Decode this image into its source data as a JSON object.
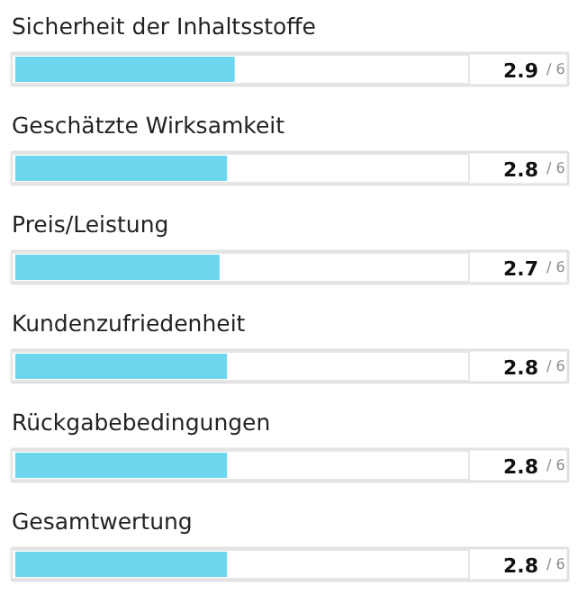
{
  "chart_data": {
    "type": "bar",
    "orientation": "horizontal",
    "categories": [
      "Sicherheit der Inhaltsstoffe",
      "Geschätzte Wirksamkeit",
      "Preis/Leistung",
      "Kundenzufriedenheit",
      "Rückgabebedingungen",
      "Gesamtwertung"
    ],
    "values": [
      2.9,
      2.8,
      2.7,
      2.8,
      2.8,
      2.8
    ],
    "value_labels": [
      "2.9",
      "2.8",
      "2.7",
      "2.8",
      "2.8",
      "2.8"
    ],
    "annotations": [
      "/ 6",
      "/ 6",
      "/ 6",
      "/ 6",
      "/ 6",
      "/ 6"
    ],
    "color": "#6dd6ee",
    "xlim": [
      0,
      6
    ],
    "tick_labels": false,
    "grid": false
  }
}
